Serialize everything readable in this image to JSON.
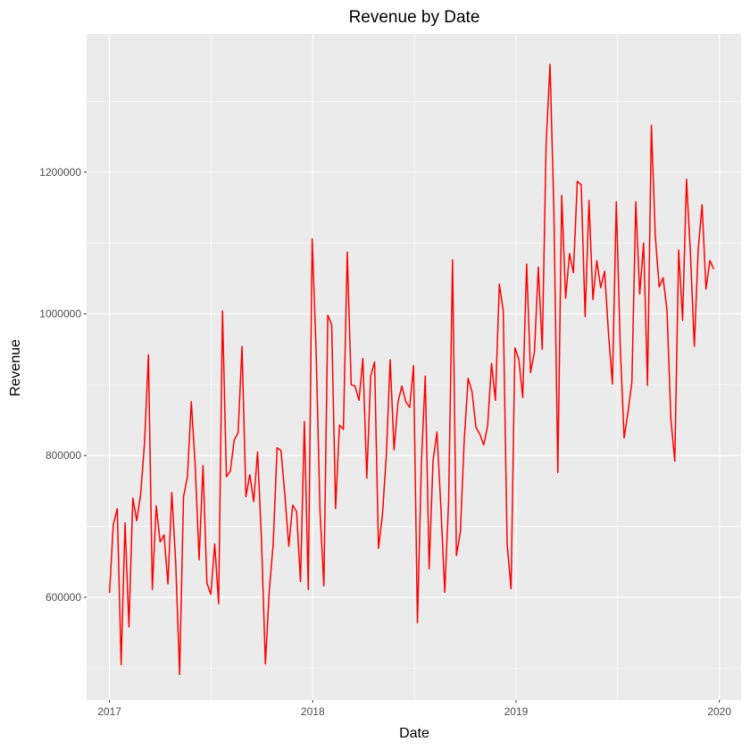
{
  "chart_data": {
    "type": "line",
    "title": "Revenue by Date",
    "xlabel": "Date",
    "ylabel": "Revenue",
    "xlim": [
      "2016-11-21",
      "2020-02-09"
    ],
    "ylim": [
      455000,
      1395000
    ],
    "x_ticks": [
      "2017",
      "2018",
      "2019",
      "2020"
    ],
    "x_tick_dates": [
      "2017-01-01",
      "2018-01-01",
      "2019-01-01",
      "2020-01-01"
    ],
    "y_ticks": [
      600000,
      800000,
      1000000,
      1200000
    ],
    "y_tick_labels": [
      "600000",
      "800000",
      "1000000",
      "1200000"
    ],
    "grid": true,
    "legend": "none",
    "background": "#EBEBEB",
    "grid_color": "#FFFFFF",
    "series": [
      {
        "color": "#FF0000",
        "x": [
          "2017-01-01",
          "2017-01-08",
          "2017-01-15",
          "2017-01-22",
          "2017-01-29",
          "2017-02-05",
          "2017-02-12",
          "2017-02-19",
          "2017-02-26",
          "2017-03-05",
          "2017-03-12",
          "2017-03-19",
          "2017-03-26",
          "2017-04-02",
          "2017-04-09",
          "2017-04-16",
          "2017-04-23",
          "2017-04-30",
          "2017-05-07",
          "2017-05-14",
          "2017-05-21",
          "2017-05-28",
          "2017-06-04",
          "2017-06-11",
          "2017-06-18",
          "2017-06-25",
          "2017-07-02",
          "2017-07-09",
          "2017-07-16",
          "2017-07-23",
          "2017-07-30",
          "2017-08-06",
          "2017-08-13",
          "2017-08-20",
          "2017-08-27",
          "2017-09-03",
          "2017-09-10",
          "2017-09-17",
          "2017-09-24",
          "2017-10-01",
          "2017-10-08",
          "2017-10-15",
          "2017-10-22",
          "2017-10-29",
          "2017-11-05",
          "2017-11-12",
          "2017-11-19",
          "2017-11-26",
          "2017-12-03",
          "2017-12-10",
          "2017-12-17",
          "2017-12-24",
          "2017-12-31",
          "2018-01-07",
          "2018-01-14",
          "2018-01-21",
          "2018-01-28",
          "2018-02-04",
          "2018-02-11",
          "2018-02-18",
          "2018-02-25",
          "2018-03-04",
          "2018-03-11",
          "2018-03-18",
          "2018-03-25",
          "2018-04-01",
          "2018-04-08",
          "2018-04-15",
          "2018-04-22",
          "2018-04-29",
          "2018-05-06",
          "2018-05-13",
          "2018-05-20",
          "2018-05-27",
          "2018-06-03",
          "2018-06-10",
          "2018-06-17",
          "2018-06-24",
          "2018-07-01",
          "2018-07-08",
          "2018-07-15",
          "2018-07-22",
          "2018-07-29",
          "2018-08-05",
          "2018-08-12",
          "2018-08-19",
          "2018-08-26",
          "2018-09-02",
          "2018-09-09",
          "2018-09-16",
          "2018-09-23",
          "2018-09-30",
          "2018-10-07",
          "2018-10-14",
          "2018-10-21",
          "2018-10-28",
          "2018-11-04",
          "2018-11-11",
          "2018-11-18",
          "2018-11-25",
          "2018-12-02",
          "2018-12-09",
          "2018-12-16",
          "2018-12-23",
          "2018-12-30",
          "2019-01-06",
          "2019-01-13",
          "2019-01-20",
          "2019-01-27",
          "2019-02-03",
          "2019-02-10",
          "2019-02-17",
          "2019-02-24",
          "2019-03-03",
          "2019-03-10",
          "2019-03-17",
          "2019-03-24",
          "2019-03-31",
          "2019-04-07",
          "2019-04-14",
          "2019-04-21",
          "2019-04-28",
          "2019-05-05",
          "2019-05-12",
          "2019-05-19",
          "2019-05-26",
          "2019-06-02",
          "2019-06-09",
          "2019-06-16",
          "2019-06-23",
          "2019-06-30",
          "2019-07-07",
          "2019-07-14",
          "2019-07-21",
          "2019-07-28",
          "2019-08-04",
          "2019-08-11",
          "2019-08-18",
          "2019-08-25",
          "2019-09-01",
          "2019-09-08",
          "2019-09-15",
          "2019-09-22",
          "2019-09-29",
          "2019-10-06",
          "2019-10-13",
          "2019-10-20",
          "2019-10-27",
          "2019-11-03",
          "2019-11-10",
          "2019-11-17",
          "2019-11-24",
          "2019-12-01",
          "2019-12-08",
          "2019-12-15",
          "2019-12-22"
        ],
        "y": [
          606000,
          703000,
          725000,
          505000,
          705000,
          558000,
          740000,
          708000,
          745000,
          818000,
          942000,
          611000,
          729000,
          678000,
          688000,
          619000,
          748000,
          648000,
          491000,
          742000,
          770000,
          876000,
          785000,
          653000,
          786000,
          620000,
          604000,
          675000,
          591000,
          1004000,
          770000,
          778000,
          822000,
          832000,
          954000,
          742000,
          773000,
          735000,
          805000,
          680000,
          506000,
          610000,
          675000,
          811000,
          807000,
          744000,
          672000,
          730000,
          721000,
          622000,
          848000,
          611000,
          1106000,
          950000,
          722000,
          616000,
          998000,
          985000,
          725000,
          843000,
          837000,
          1087000,
          900000,
          898000,
          878000,
          937000,
          768000,
          912000,
          932000,
          669000,
          715000,
          799000,
          935000,
          808000,
          875000,
          898000,
          876000,
          868000,
          927000,
          564000,
          787000,
          912000,
          640000,
          793000,
          833000,
          728000,
          607000,
          736000,
          1076000,
          659000,
          692000,
          822000,
          909000,
          890000,
          840000,
          830000,
          815000,
          842000,
          930000,
          878000,
          1042000,
          1004000,
          675000,
          612000,
          952000,
          936000,
          882000,
          1070000,
          917000,
          946000,
          1066000,
          950000,
          1240000,
          1352000,
          1143000,
          776000,
          1167000,
          1022000,
          1085000,
          1058000,
          1187000,
          1182000,
          996000,
          1160000,
          1020000,
          1075000,
          1037000,
          1060000,
          972000,
          901000,
          1158000,
          956000,
          825000,
          861000,
          904000,
          1158000,
          1028000,
          1100000,
          899000,
          1266000,
          1110000,
          1038000,
          1051000,
          1005000,
          851000,
          792000,
          1090000,
          991000,
          1190000,
          1087000,
          954000,
          1090000,
          1154000,
          1035000,
          1075000,
          1063000
        ]
      }
    ]
  }
}
